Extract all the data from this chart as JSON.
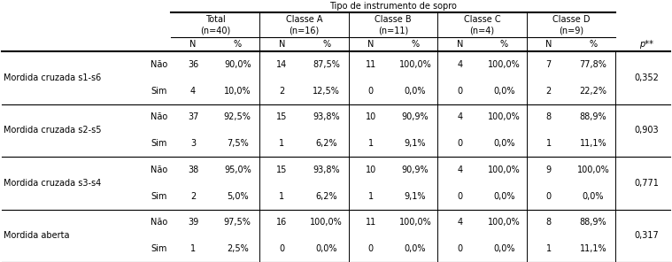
{
  "title": "Tipo de instrumento de sopro",
  "col_groups": [
    {
      "label": "Total",
      "n": "(n=40)"
    },
    {
      "label": "Classe A",
      "n": "(n=16)"
    },
    {
      "label": "Classe B",
      "n": "(n=11)"
    },
    {
      "label": "Classe C",
      "n": "(n=4)"
    },
    {
      "label": "Classe D",
      "n": "(n=9)"
    }
  ],
  "pval_col": "p**",
  "rows": [
    {
      "label": "Mordida cruzada s1-s6",
      "subrows": [
        {
          "sim_nao": "Não",
          "values": [
            "36",
            "90,0%",
            "14",
            "87,5%",
            "11",
            "100,0%",
            "4",
            "100,0%",
            "7",
            "77,8%"
          ]
        },
        {
          "sim_nao": "Sim",
          "values": [
            "4",
            "10,0%",
            "2",
            "12,5%",
            "0",
            "0,0%",
            "0",
            "0,0%",
            "2",
            "22,2%"
          ]
        }
      ],
      "pval": "0,352"
    },
    {
      "label": "Mordida cruzada s2-s5",
      "subrows": [
        {
          "sim_nao": "Não",
          "values": [
            "37",
            "92,5%",
            "15",
            "93,8%",
            "10",
            "90,9%",
            "4",
            "100,0%",
            "8",
            "88,9%"
          ]
        },
        {
          "sim_nao": "Sim",
          "values": [
            "3",
            "7,5%",
            "1",
            "6,2%",
            "1",
            "9,1%",
            "0",
            "0,0%",
            "1",
            "11,1%"
          ]
        }
      ],
      "pval": "0,903"
    },
    {
      "label": "Mordida cruzada s3-s4",
      "subrows": [
        {
          "sim_nao": "Não",
          "values": [
            "38",
            "95,0%",
            "15",
            "93,8%",
            "10",
            "90,9%",
            "4",
            "100,0%",
            "9",
            "100,0%"
          ]
        },
        {
          "sim_nao": "Sim",
          "values": [
            "2",
            "5,0%",
            "1",
            "6,2%",
            "1",
            "9,1%",
            "0",
            "0,0%",
            "0",
            "0,0%"
          ]
        }
      ],
      "pval": "0,771"
    },
    {
      "label": "Mordida aberta",
      "subrows": [
        {
          "sim_nao": "Não",
          "values": [
            "39",
            "97,5%",
            "16",
            "100,0%",
            "11",
            "100,0%",
            "4",
            "100,0%",
            "8",
            "88,9%"
          ]
        },
        {
          "sim_nao": "Sim",
          "values": [
            "1",
            "2,5%",
            "0",
            "0,0%",
            "0",
            "0,0%",
            "0",
            "0,0%",
            "1",
            "11,1%"
          ]
        }
      ],
      "pval": "0,317"
    }
  ],
  "font_size": 7.0,
  "bg_color": "#ffffff",
  "line_color": "#000000",
  "fig_w": 7.59,
  "fig_h": 2.96,
  "dpi": 100
}
